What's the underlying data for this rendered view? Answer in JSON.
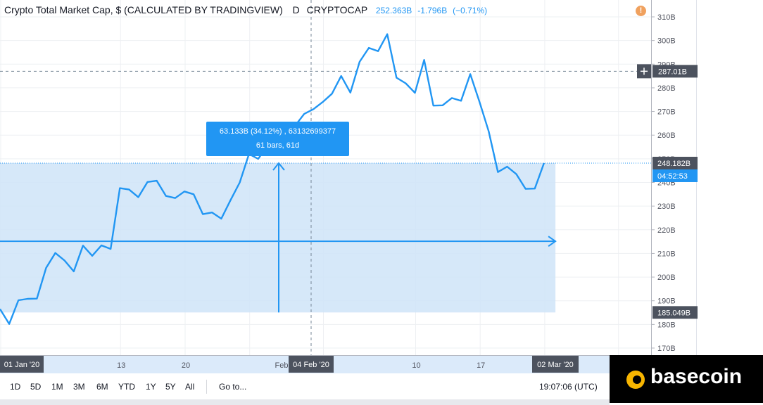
{
  "header": {
    "title": "Crypto Total Market Cap, $ (CALCULATED BY TRADINGVIEW)",
    "interval": "D",
    "symbol": "CRYPTOCAP",
    "last_price": "252.363B",
    "change": "-1.796B",
    "change_pct": "(−0.71%)",
    "warning_icon": "!"
  },
  "measure_tooltip": {
    "line1": "63.133B (34.12%) , 63132699377",
    "line2": "61 bars, 61d"
  },
  "price_labels": {
    "crosshair": "287.01B",
    "last": "248.182B",
    "countdown": "04:52:53",
    "low": "185.049B"
  },
  "time_labels": {
    "start": "01 Jan '20",
    "crosshair": "04 Feb '20",
    "end": "02 Mar '20",
    "partial_feb": "Feb"
  },
  "toolbar": {
    "ranges": [
      "1D",
      "5D",
      "1M",
      "3M",
      "6M",
      "YTD",
      "1Y",
      "5Y",
      "All"
    ],
    "goto": "Go to...",
    "clock": "19:07:06 (UTC)"
  },
  "watermark": {
    "brand": "basecoin"
  },
  "colors": {
    "line": "#2196f3",
    "measure_fill": "#cfe4f8",
    "axis_label_bg": "#4c525e",
    "countdown_bg": "#2196f3",
    "label_bg": "#2196f3"
  },
  "chart_data": {
    "type": "line",
    "title": "Crypto Total Market Cap, $ (CALCULATED BY TRADINGVIEW)",
    "xlabel": "",
    "ylabel": "",
    "ylim": [
      166,
      312
    ],
    "y_ticks": [
      170,
      180,
      190,
      200,
      210,
      220,
      230,
      240,
      250,
      260,
      270,
      280,
      290,
      300,
      310
    ],
    "y_tick_labels": [
      "170B",
      "180B",
      "190B",
      "200B",
      "210B",
      "220B",
      "230B",
      "240B",
      "250B",
      "260B",
      "270B",
      "280B",
      "290B",
      "300B",
      "310B"
    ],
    "x_ticks": [
      {
        "day": 13,
        "label": "13"
      },
      {
        "day": 20,
        "label": "20"
      },
      {
        "day": 45,
        "label": "10"
      },
      {
        "day": 52,
        "label": "17"
      }
    ],
    "xlim": [
      0,
      70
    ],
    "series": [
      {
        "values": [
          186.5,
          180.2,
          190.2,
          190.8,
          190.9,
          203.9,
          210.2,
          207.0,
          202.4,
          213.3,
          209.0,
          213.4,
          211.9,
          237.6,
          237.0,
          233.8,
          240.2,
          240.7,
          234.3,
          233.4,
          236.2,
          235.0,
          226.6,
          227.3,
          224.7,
          232.5,
          240.0,
          252.0,
          250.0,
          255.5,
          257.0,
          258.0,
          264.0,
          269.0,
          271.0,
          274.0,
          277.5,
          285.0,
          278.0,
          291.0,
          296.9,
          295.5,
          302.7,
          284.3,
          281.9,
          277.9,
          291.8,
          272.5,
          272.6,
          275.7,
          274.5,
          285.8,
          274.1,
          261.6,
          244.4,
          246.7,
          243.5,
          237.3,
          237.4,
          248.2
        ]
      }
    ],
    "measure": {
      "x_start": 0,
      "x_end": 61,
      "y_low": 185.049,
      "y_high": 248.182,
      "change": "63.133B",
      "change_pct": 34.12,
      "bars": 61,
      "days": 61
    },
    "crosshair": {
      "x": 35,
      "y": 287.01
    },
    "last_value": 248.182
  }
}
